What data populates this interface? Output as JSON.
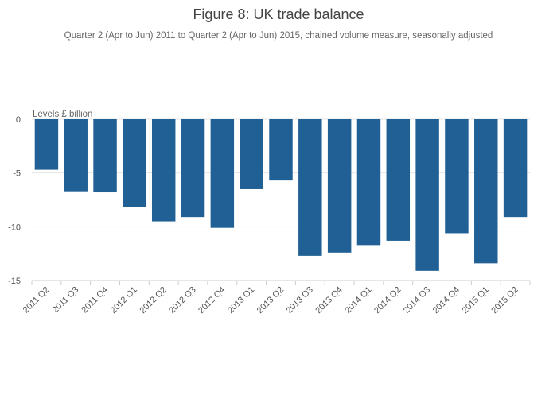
{
  "chart_data": {
    "type": "bar",
    "title": "Figure 8: UK trade balance",
    "subtitle": "Quarter 2 (Apr to Jun) 2011 to Quarter 2 (Apr to Jun) 2015, chained volume measure, seasonally adjusted",
    "ylabel": "Levels £ billion",
    "xlabel": "",
    "ylim": [
      -15,
      0
    ],
    "yticks": [
      0,
      -5,
      -10,
      -15
    ],
    "ytick_labels": [
      "0",
      "-5",
      "-10",
      "-15"
    ],
    "categories": [
      "2011 Q2",
      "2011 Q3",
      "2011 Q4",
      "2012 Q1",
      "2012 Q2",
      "2012 Q3",
      "2012 Q4",
      "2013 Q1",
      "2013 Q2",
      "2013 Q3",
      "2013 Q4",
      "2014 Q1",
      "2014 Q2",
      "2014 Q3",
      "2014 Q4",
      "2015 Q1",
      "2015 Q2"
    ],
    "values": [
      -4.7,
      -6.7,
      -6.8,
      -8.2,
      -9.5,
      -9.1,
      -10.1,
      -6.5,
      -5.7,
      -12.7,
      -12.4,
      -11.7,
      -11.3,
      -14.1,
      -10.6,
      -13.4,
      -9.1
    ],
    "bar_color": "#206095",
    "grid": true
  }
}
